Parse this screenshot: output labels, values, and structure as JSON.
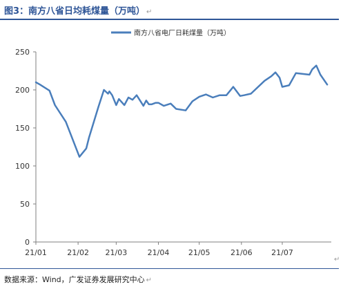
{
  "header": {
    "title": "图3：南方八省日均耗煤量（万吨）",
    "return_mark": "↵"
  },
  "footer": {
    "source": "数据来源：Wind，广发证券发展研究中心",
    "return_mark": "↵"
  },
  "colors": {
    "accent": "#2e5597",
    "series": "#4a7ebb"
  },
  "chart_data": {
    "type": "line",
    "title": "",
    "xlabel": "",
    "ylabel": "",
    "ylim": [
      0,
      250
    ],
    "yticks": [
      0,
      50,
      100,
      150,
      200,
      250
    ],
    "grid": false,
    "legend_position": "top-center",
    "x_tick_labels": [
      "21/01",
      "21/02",
      "21/03",
      "21/04",
      "21/05",
      "21/06",
      "21/07"
    ],
    "x": [
      "2021-01-01",
      "2021-01-04",
      "2021-01-11",
      "2021-01-15",
      "2021-01-23",
      "2021-02-02",
      "2021-02-07",
      "2021-02-09",
      "2021-02-16",
      "2021-02-20",
      "2021-02-23",
      "2021-02-24",
      "2021-02-26",
      "2021-03-01",
      "2021-03-03",
      "2021-03-07",
      "2021-03-10",
      "2021-03-13",
      "2021-03-16",
      "2021-03-21",
      "2021-03-23",
      "2021-03-25",
      "2021-03-27",
      "2021-03-30",
      "2021-04-01",
      "2021-04-05",
      "2021-04-10",
      "2021-04-14",
      "2021-04-21",
      "2021-04-26",
      "2021-05-01",
      "2021-05-06",
      "2021-05-11",
      "2021-05-16",
      "2021-05-21",
      "2021-05-26",
      "2021-05-31",
      "2021-06-03",
      "2021-06-08",
      "2021-06-18",
      "2021-06-23",
      "2021-06-26",
      "2021-06-29",
      "2021-07-01",
      "2021-07-06",
      "2021-07-11",
      "2021-07-21",
      "2021-07-23",
      "2021-07-26",
      "2021-07-29",
      "2021-08-03"
    ],
    "series": [
      {
        "name": "南方八省电厂日耗煤量（万吨）",
        "color": "#4a7ebb",
        "values": [
          210,
          207,
          199,
          180,
          158,
          112,
          123,
          137,
          178,
          200,
          195,
          198,
          193,
          180,
          188,
          180,
          190,
          187,
          193,
          179,
          186,
          181,
          181,
          183,
          183,
          179,
          182,
          175,
          173,
          185,
          191,
          194,
          190,
          193,
          193,
          204,
          192,
          193,
          195,
          212,
          218,
          223,
          216,
          204,
          206,
          222,
          220,
          227,
          232,
          220,
          207
        ]
      }
    ]
  }
}
